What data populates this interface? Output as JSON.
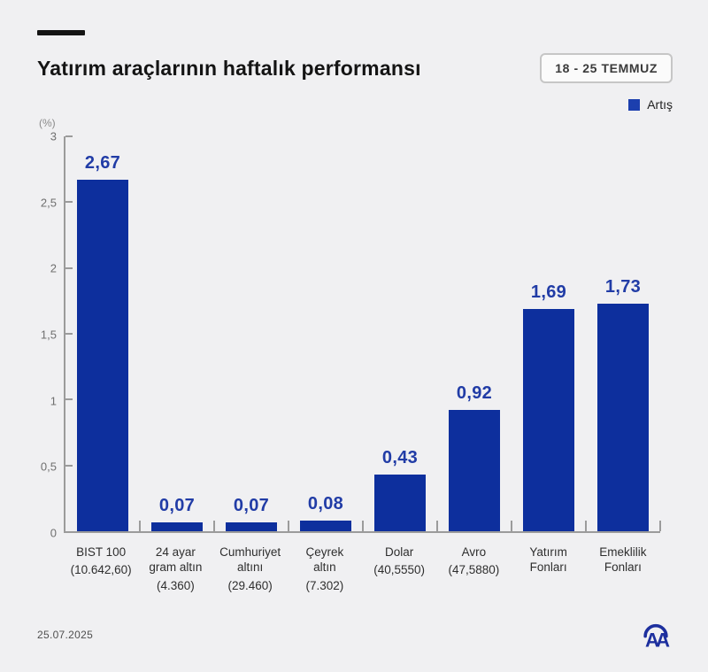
{
  "header": {
    "title": "Yatırım araçlarının haftalık performansı",
    "badge": "18 - 25 TEMMUZ"
  },
  "legend": {
    "label": "Artış",
    "color": "#1c3fae"
  },
  "footer": {
    "date": "25.07.2025",
    "logo": "AA"
  },
  "chart_data": {
    "type": "bar",
    "title": "Yatırım araçlarının haftalık performansı",
    "subtitle": "18 - 25 TEMMUZ",
    "unit_label": "(%)",
    "ylabel": "(%)",
    "ylim": [
      0,
      3
    ],
    "grid": false,
    "legend_position": "top-right",
    "bar_color": "#0d2f9d",
    "value_label_color": "#213ca6",
    "yticks": [
      {
        "value": 0,
        "label": "0"
      },
      {
        "value": 0.5,
        "label": "0,5"
      },
      {
        "value": 1,
        "label": "1"
      },
      {
        "value": 1.5,
        "label": "1,5"
      },
      {
        "value": 2,
        "label": "2"
      },
      {
        "value": 2.5,
        "label": "2,5"
      },
      {
        "value": 3,
        "label": "3"
      }
    ],
    "series": [
      {
        "name": "Artış",
        "values": [
          2.67,
          0.07,
          0.07,
          0.08,
          0.43,
          0.92,
          1.69,
          1.73
        ]
      }
    ],
    "categories": [
      {
        "name_lines": [
          "BIST 100"
        ],
        "detail": "(10.642,60)",
        "value": 2.67,
        "display": "2,67"
      },
      {
        "name_lines": [
          "24 ayar",
          "gram altın"
        ],
        "detail": "(4.360)",
        "value": 0.07,
        "display": "0,07"
      },
      {
        "name_lines": [
          "Cumhuriyet",
          "altını"
        ],
        "detail": "(29.460)",
        "value": 0.07,
        "display": "0,07"
      },
      {
        "name_lines": [
          "Çeyrek",
          "altın"
        ],
        "detail": "(7.302)",
        "value": 0.08,
        "display": "0,08"
      },
      {
        "name_lines": [
          "Dolar"
        ],
        "detail": "(40,5550)",
        "value": 0.43,
        "display": "0,43"
      },
      {
        "name_lines": [
          "Avro"
        ],
        "detail": "(47,5880)",
        "value": 0.92,
        "display": "0,92"
      },
      {
        "name_lines": [
          "Yatırım",
          "Fonları"
        ],
        "detail": "",
        "value": 1.69,
        "display": "1,69"
      },
      {
        "name_lines": [
          "Emeklilik",
          "Fonları"
        ],
        "detail": "",
        "value": 1.73,
        "display": "1,73"
      }
    ]
  }
}
